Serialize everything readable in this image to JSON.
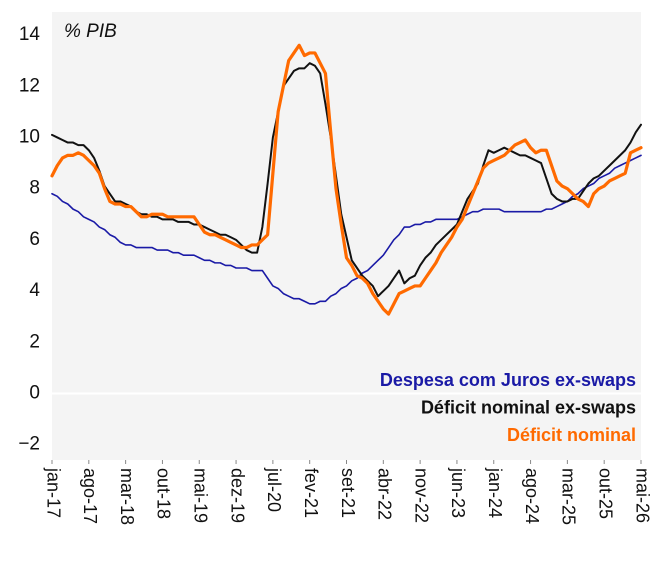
{
  "chart_data": {
    "type": "line",
    "annotation": "% PIB",
    "categories": [
      "jan-17",
      null,
      null,
      null,
      null,
      null,
      null,
      "ago-17",
      null,
      null,
      null,
      null,
      null,
      null,
      "mar-18",
      null,
      null,
      null,
      null,
      null,
      null,
      "out-18",
      null,
      null,
      null,
      null,
      null,
      null,
      "mai-19",
      null,
      null,
      null,
      null,
      null,
      null,
      "dez-19",
      null,
      null,
      null,
      null,
      null,
      null,
      "jul-20",
      null,
      null,
      null,
      null,
      null,
      null,
      "fev-21",
      null,
      null,
      null,
      null,
      null,
      null,
      "set-21",
      null,
      null,
      null,
      null,
      null,
      null,
      "abr-22",
      null,
      null,
      null,
      null,
      null,
      null,
      "nov-22",
      null,
      null,
      null,
      null,
      null,
      null,
      "jun-23",
      null,
      null,
      null,
      null,
      null,
      null,
      "jan-24",
      null,
      null,
      null,
      null,
      null,
      null,
      "ago-24",
      null,
      null,
      null,
      null,
      null,
      null,
      "mar-25",
      null,
      null,
      null,
      null,
      null,
      null,
      "out-25",
      null,
      null,
      null,
      null,
      null,
      null,
      "mai-26"
    ],
    "series": [
      {
        "name": "Despesa com Juros ex-swaps",
        "color": "#1a1aa6",
        "width": 1.6,
        "values": [
          7.8,
          7.7,
          7.5,
          7.4,
          7.2,
          7.1,
          6.9,
          6.8,
          6.7,
          6.5,
          6.4,
          6.2,
          6.1,
          5.9,
          5.8,
          5.8,
          5.7,
          5.7,
          5.7,
          5.7,
          5.6,
          5.6,
          5.6,
          5.5,
          5.5,
          5.4,
          5.4,
          5.4,
          5.3,
          5.2,
          5.2,
          5.1,
          5.1,
          5.0,
          5.0,
          4.9,
          4.9,
          4.9,
          4.8,
          4.8,
          4.8,
          4.5,
          4.2,
          4.1,
          3.9,
          3.8,
          3.7,
          3.7,
          3.6,
          3.5,
          3.5,
          3.6,
          3.6,
          3.8,
          3.9,
          4.1,
          4.2,
          4.4,
          4.5,
          4.7,
          4.8,
          5.0,
          5.2,
          5.4,
          5.7,
          6.0,
          6.2,
          6.5,
          6.5,
          6.6,
          6.6,
          6.7,
          6.7,
          6.8,
          6.8,
          6.8,
          6.8,
          6.8,
          6.9,
          7.0,
          7.1,
          7.1,
          7.2,
          7.2,
          7.2,
          7.2,
          7.1,
          7.1,
          7.1,
          7.1,
          7.1,
          7.1,
          7.1,
          7.1,
          7.2,
          7.2,
          7.3,
          7.4,
          7.5,
          7.7,
          7.8,
          8.0,
          8.1,
          8.2,
          8.4,
          8.5,
          8.6,
          8.8,
          8.9,
          9.0,
          9.1,
          9.2,
          9.3
        ]
      },
      {
        "name": "Déficit nominal ex-swaps",
        "color": "#111111",
        "width": 2,
        "values": [
          10.1,
          10.0,
          9.9,
          9.8,
          9.8,
          9.7,
          9.7,
          9.5,
          9.2,
          8.7,
          8.1,
          7.8,
          7.5,
          7.5,
          7.4,
          7.3,
          7.1,
          7.0,
          7.0,
          6.9,
          6.9,
          6.8,
          6.8,
          6.8,
          6.7,
          6.7,
          6.7,
          6.6,
          6.6,
          6.5,
          6.4,
          6.3,
          6.2,
          6.2,
          6.1,
          6.0,
          5.8,
          5.6,
          5.5,
          5.5,
          6.5,
          8.2,
          10.0,
          11.0,
          12.0,
          12.3,
          12.6,
          12.7,
          12.7,
          12.9,
          12.8,
          12.5,
          11.3,
          10.0,
          8.5,
          7.0,
          6.1,
          5.2,
          4.9,
          4.6,
          4.4,
          4.2,
          3.8,
          4.0,
          4.2,
          4.5,
          4.8,
          4.3,
          4.5,
          4.6,
          5.0,
          5.3,
          5.5,
          5.8,
          6.0,
          6.2,
          6.4,
          6.6,
          7.1,
          7.6,
          7.9,
          8.2,
          8.9,
          9.5,
          9.4,
          9.5,
          9.6,
          9.5,
          9.4,
          9.3,
          9.3,
          9.2,
          9.1,
          9.0,
          8.4,
          7.8,
          7.6,
          7.5,
          7.5,
          7.6,
          7.6,
          7.9,
          8.2,
          8.4,
          8.5,
          8.7,
          8.9,
          9.1,
          9.3,
          9.5,
          9.8,
          10.2,
          10.5
        ]
      },
      {
        "name": "Déficit nominal",
        "color": "#ff6a00",
        "width": 3.2,
        "values": [
          8.5,
          8.9,
          9.2,
          9.3,
          9.3,
          9.4,
          9.3,
          9.1,
          8.9,
          8.6,
          8.0,
          7.5,
          7.4,
          7.4,
          7.3,
          7.3,
          7.1,
          6.9,
          6.9,
          7.0,
          7.0,
          7.0,
          6.9,
          6.9,
          6.9,
          6.9,
          6.9,
          6.9,
          6.6,
          6.3,
          6.2,
          6.2,
          6.1,
          6.0,
          5.9,
          5.8,
          5.7,
          5.7,
          5.8,
          5.8,
          6.0,
          6.2,
          8.6,
          11.0,
          12.0,
          13.0,
          13.3,
          13.6,
          13.2,
          13.3,
          13.3,
          12.9,
          12.5,
          10.2,
          8.0,
          6.6,
          5.3,
          5.0,
          4.6,
          4.5,
          4.3,
          3.9,
          3.6,
          3.3,
          3.1,
          3.5,
          3.9,
          4.0,
          4.1,
          4.2,
          4.2,
          4.5,
          4.8,
          5.1,
          5.5,
          5.8,
          6.1,
          6.5,
          6.8,
          7.3,
          7.8,
          8.3,
          8.8,
          9.0,
          9.1,
          9.2,
          9.3,
          9.5,
          9.7,
          9.8,
          9.9,
          9.6,
          9.4,
          9.5,
          9.5,
          8.9,
          8.3,
          8.1,
          8.0,
          7.8,
          7.6,
          7.5,
          7.3,
          7.8,
          8.0,
          8.1,
          8.3,
          8.4,
          8.5,
          8.6,
          9.4,
          9.5,
          9.6
        ]
      }
    ],
    "ylim": [
      -2.6,
      14.9
    ],
    "yticks": [
      {
        "value": -2,
        "label": "−2"
      },
      0,
      2,
      4,
      6,
      8,
      10,
      12,
      14
    ],
    "zero_line": true,
    "legend": "bottom-right"
  }
}
